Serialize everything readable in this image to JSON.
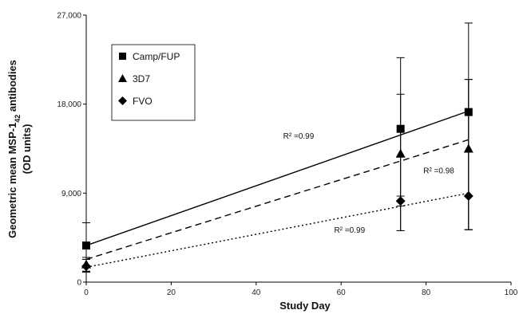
{
  "chart_data": {
    "type": "scatter",
    "xlabel": "Study Day",
    "ylabel_line1_prefix": "Geometric mean MSP-1",
    "ylabel_line1_sub": "42",
    "ylabel_line1_suffix": " antibodies",
    "ylabel_line2": "(OD units)",
    "xlim": [
      0,
      100
    ],
    "ylim": [
      0,
      27000
    ],
    "xticks": [
      0,
      20,
      40,
      60,
      80,
      100
    ],
    "yticks": [
      0,
      9000,
      18000,
      27000
    ],
    "ytick_labels": [
      "0",
      "9,000",
      "18,000",
      "27,000"
    ],
    "xtick_labels": [
      "0",
      "20",
      "40",
      "60",
      "80",
      "100"
    ],
    "legend_position": "top-left",
    "series": [
      {
        "name": "Camp/FUP",
        "marker": "square",
        "x": [
          0,
          74,
          90
        ],
        "y": [
          3700,
          15500,
          17200
        ],
        "err_low": [
          1100,
          5200,
          5300
        ],
        "err_high": [
          6000,
          22700,
          26200
        ],
        "trend": {
          "x0": 0,
          "y0": 3700,
          "x1": 90,
          "y1": 17300,
          "style": "solid"
        },
        "r2_label": "R² = 0.99"
      },
      {
        "name": "3D7",
        "marker": "triangle",
        "x": [
          0,
          74,
          90
        ],
        "y": [
          1800,
          13000,
          13500
        ],
        "err_low": [
          1000,
          5200,
          5300
        ],
        "err_high": [
          2500,
          19000,
          20500
        ],
        "trend": {
          "x0": 0,
          "y0": 2300,
          "x1": 90,
          "y1": 14400,
          "style": "dashed"
        },
        "r2_label": "R² = 0.98"
      },
      {
        "name": "FVO",
        "marker": "diamond",
        "x": [
          0,
          74,
          90
        ],
        "y": [
          1600,
          8200,
          8700
        ],
        "err_low": [
          1100,
          7700,
          5300
        ],
        "err_high": [
          2300,
          8700,
          20500
        ],
        "trend": {
          "x0": 0,
          "y0": 1500,
          "x1": 90,
          "y1": 9000,
          "style": "dotted"
        },
        "r2_label": "R² = 0.99"
      }
    ],
    "annotations": [
      {
        "text": "R² =0.99",
        "x": 50,
        "y": 14500
      },
      {
        "text": "R² =0.98",
        "x": 83,
        "y": 11000
      },
      {
        "text": "R² =0.99",
        "x": 62,
        "y": 5000
      }
    ]
  }
}
